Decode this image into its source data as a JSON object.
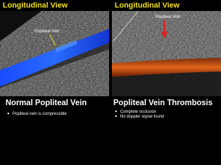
{
  "panels": [
    {
      "view": "Longitudinal View",
      "label": "Popliteal Vein",
      "title": "Normal Popliteal Vein",
      "bullets": [
        "Popliteal vein is compressible"
      ]
    },
    {
      "view": "Longitudinal View",
      "label": "Popliteal Vein",
      "title": "Popliteal Vein Thrombosis",
      "bullets": [
        "Complete occlusion",
        "No doppler signal found"
      ]
    }
  ]
}
